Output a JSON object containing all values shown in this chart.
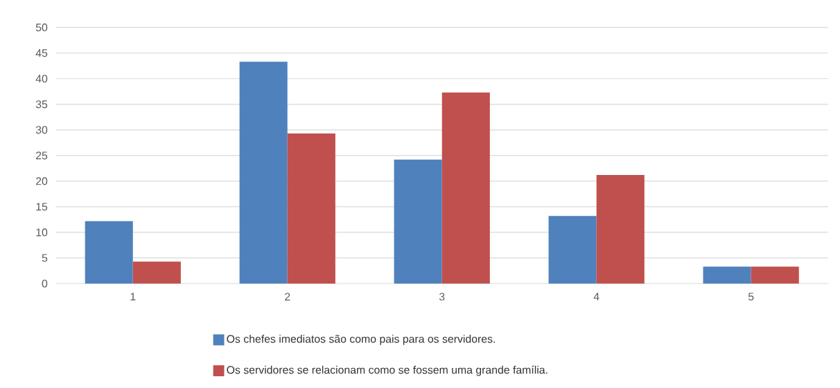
{
  "chart_data": {
    "type": "bar",
    "categories": [
      "1",
      "2",
      "3",
      "4",
      "5"
    ],
    "series": [
      {
        "name": "Os chefes imediatos são como pais para os servidores.",
        "color": "#4f81bd",
        "values": [
          12.2,
          43.3,
          24.2,
          13.2,
          3.3
        ]
      },
      {
        "name": "Os servidores se relacionam como se fossem uma grande família.",
        "color": "#c0504d",
        "values": [
          4.3,
          29.3,
          37.3,
          21.2,
          3.3
        ]
      }
    ],
    "ylim": [
      0,
      50
    ],
    "yticks": [
      0,
      5,
      10,
      15,
      20,
      25,
      30,
      35,
      40,
      45,
      50
    ],
    "grid": "y",
    "legend": "bottom"
  }
}
